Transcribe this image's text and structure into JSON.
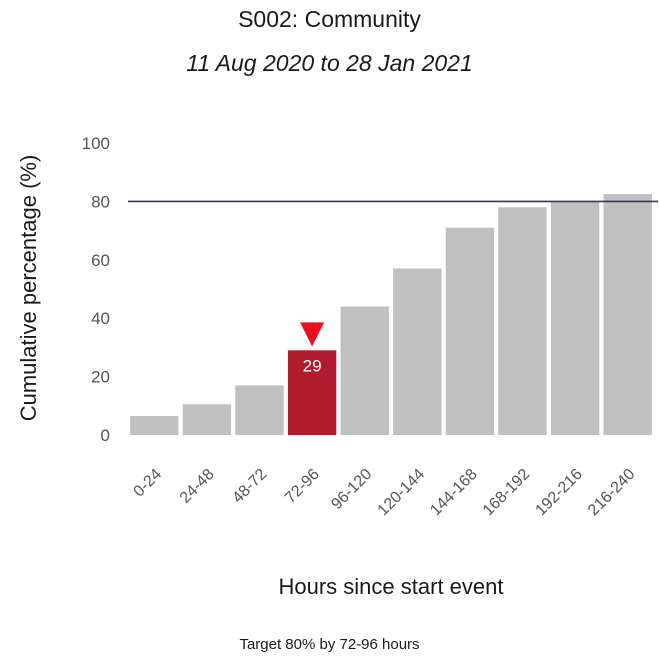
{
  "header": {
    "title": "S002: Community",
    "subtitle": "11 Aug 2020 to 28 Jan 2021"
  },
  "footnote": "Target 80% by 72-96 hours",
  "chart_data": {
    "type": "bar",
    "categories": [
      "0-24",
      "24-48",
      "48-72",
      "72-96",
      "96-120",
      "120-144",
      "144-168",
      "168-192",
      "192-216",
      "216-240"
    ],
    "values": [
      6.5,
      10.5,
      17,
      29,
      44,
      57,
      71,
      78,
      80,
      82.5
    ],
    "xlabel": "Hours since start event",
    "ylabel": "Cumulative percentage (%)",
    "ylim": [
      0,
      100
    ],
    "yticks": [
      0,
      20,
      40,
      60,
      80,
      100
    ],
    "target_line": 80,
    "highlight_category": "72-96",
    "highlight_label": "29",
    "grid": false,
    "legend": "none",
    "colors": {
      "bar": "#c0c0c0",
      "highlight": "#b01c2e",
      "marker": "#e8101e",
      "target_line": "#2e3a5c"
    }
  }
}
